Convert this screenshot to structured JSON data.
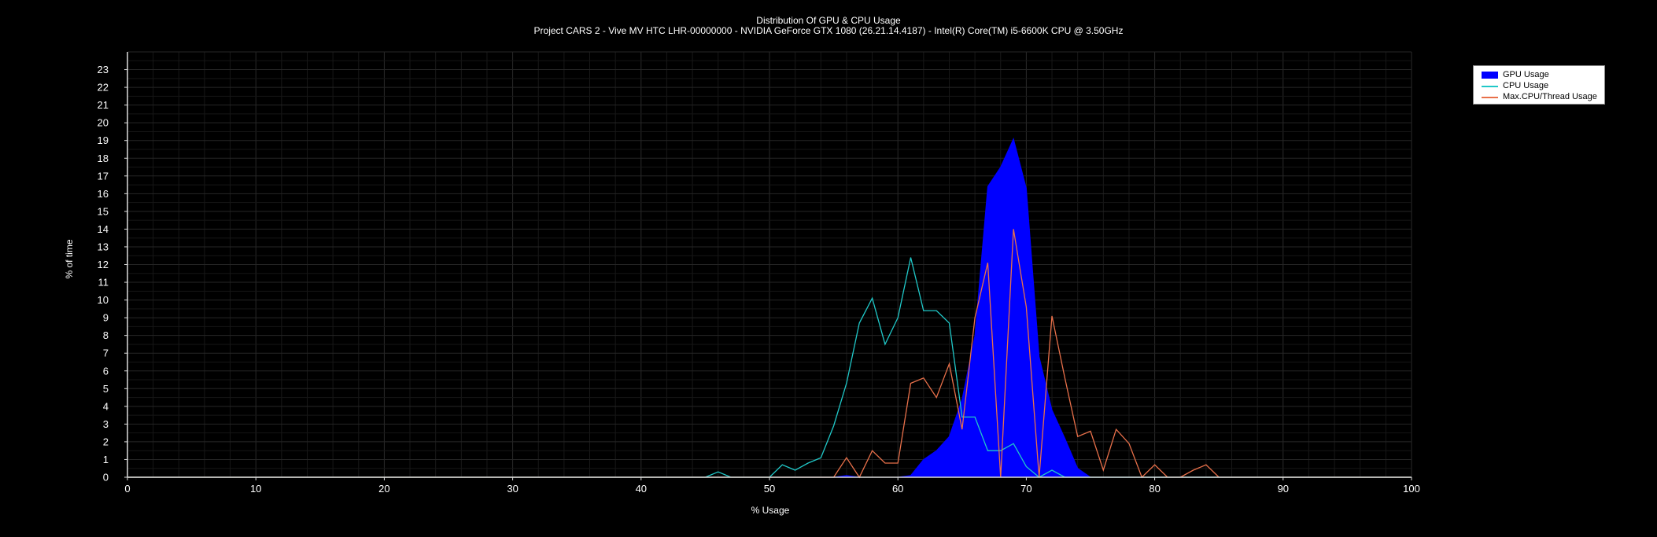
{
  "chart_data": {
    "type": "area",
    "title": "Distribution Of GPU & CPU Usage",
    "subtitle": "Project CARS 2 - Vive MV HTC LHR-00000000 - NVIDIA GeForce GTX 1080 (26.21.14.4187) - Intel(R) Core(TM) i5-6600K CPU @ 3.50GHz",
    "xlabel": "% Usage",
    "ylabel": "% of time",
    "xlim": [
      0,
      100
    ],
    "ylim": [
      0,
      24
    ],
    "xticks": [
      0,
      10,
      20,
      30,
      40,
      50,
      60,
      70,
      80,
      90,
      100
    ],
    "yticks": [
      0,
      1,
      2,
      3,
      4,
      5,
      6,
      7,
      8,
      9,
      10,
      11,
      12,
      13,
      14,
      15,
      16,
      17,
      18,
      19,
      20,
      21,
      22,
      23
    ],
    "grid": true,
    "legend_position": "top-right",
    "series": [
      {
        "name": "GPU Usage",
        "style": "filled-area",
        "color": "#0000FF",
        "x": [
          0,
          55,
          56,
          57,
          58,
          59,
          60,
          61,
          62,
          63,
          64,
          65,
          66,
          67,
          68,
          69,
          70,
          71,
          72,
          73,
          74,
          75,
          100
        ],
        "y": [
          0,
          0,
          0.1,
          0,
          0,
          0,
          0,
          0.1,
          1.0,
          1.5,
          2.3,
          4.4,
          8.0,
          16.4,
          17.5,
          19.1,
          16.3,
          6.8,
          3.8,
          2.2,
          0.5,
          0,
          0
        ]
      },
      {
        "name": "CPU Usage",
        "style": "line",
        "color": "#20C8C8",
        "x": [
          0,
          45,
          46,
          47,
          50,
          51,
          52,
          53,
          54,
          55,
          56,
          57,
          58,
          59,
          60,
          61,
          62,
          63,
          64,
          65,
          66,
          67,
          68,
          69,
          70,
          71,
          72,
          73,
          100
        ],
        "y": [
          0,
          0,
          0.3,
          0,
          0,
          0.7,
          0.4,
          0.8,
          1.1,
          2.9,
          5.3,
          8.7,
          10.1,
          7.5,
          9.0,
          12.4,
          9.4,
          9.4,
          8.7,
          3.4,
          3.4,
          1.5,
          1.5,
          1.9,
          0.6,
          0,
          0.4,
          0,
          0
        ]
      },
      {
        "name": "Max.CPU/Thread Usage",
        "style": "line",
        "color": "#E8704A",
        "x": [
          0,
          55,
          56,
          57,
          58,
          59,
          60,
          61,
          62,
          63,
          64,
          65,
          66,
          67,
          68,
          69,
          70,
          71,
          72,
          73,
          74,
          75,
          76,
          77,
          78,
          79,
          80,
          81,
          82,
          83,
          84,
          85,
          100
        ],
        "y": [
          0,
          0,
          1.1,
          0,
          1.5,
          0.8,
          0.8,
          5.3,
          5.6,
          4.5,
          6.4,
          2.7,
          9.0,
          12.1,
          0,
          14.0,
          9.6,
          0,
          9.1,
          5.6,
          2.3,
          2.6,
          0.4,
          2.7,
          1.9,
          0,
          0.7,
          0,
          0,
          0.4,
          0.7,
          0,
          0
        ]
      }
    ]
  }
}
